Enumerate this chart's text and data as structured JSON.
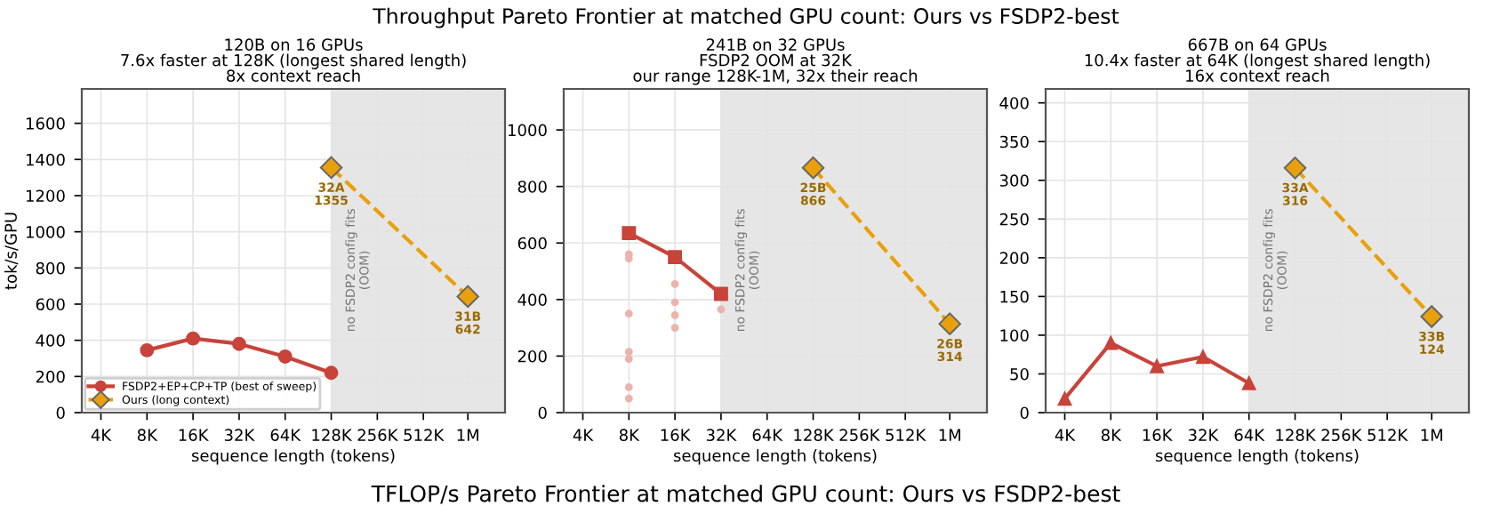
{
  "chart_data": [
    {
      "type": "line",
      "title": "120B on 16 GPUs\n7.6x faster at 128K (longest shared length)\n8x context reach",
      "xlabel": "sequence length (tokens)",
      "ylabel": "tok/s/GPU",
      "log": "x",
      "grid": true,
      "legend": "bottom left",
      "annotations": [
        "Throughput Pareto Frontier at matched GPU count: Ours vs FSDP2-best",
        "TFLOP/s Pareto Frontier at matched GPU count: Ours vs FSDP2-best"
      ],
      "xlim": [
        3000,
        1750000
      ],
      "xticks": [
        {
          "value": 4000,
          "label": "4K"
        },
        {
          "value": 8000,
          "label": "8K"
        },
        {
          "value": 16000,
          "label": "16K"
        },
        {
          "value": 32000,
          "label": "32K"
        },
        {
          "value": 64000,
          "label": "64K"
        },
        {
          "value": 128000,
          "label": "128K"
        },
        {
          "value": 256000,
          "label": "256K"
        },
        {
          "value": 512000,
          "label": "512K"
        },
        {
          "value": 1000000,
          "label": "1M"
        }
      ],
      "ylim": [
        0,
        1790
      ],
      "yticks": [
        0,
        200,
        400,
        600,
        800,
        1000,
        1200,
        1400,
        1600
      ],
      "bands": [
        {
          "axis": "x",
          "from": 128000,
          "to": 1750000,
          "label": "no FSDP2 config fits\n(OOM)",
          "color": "#e6e6e6"
        }
      ],
      "series": [
        {
          "name": "FSDP2+EP+CP+TP (best of sweep)",
          "color": "#c8433a",
          "marker": "circle",
          "line_style": "solid",
          "x": [
            8000,
            16000,
            32000,
            64000,
            128000
          ],
          "values": [
            345,
            410,
            380,
            310,
            220
          ]
        },
        {
          "name": "Ours (long context)",
          "color": "#e8a00c",
          "marker": "diamond",
          "line_style": "dashed",
          "x": [
            128000,
            1000000
          ],
          "values": [
            1355,
            642
          ],
          "value_labels": [
            "32A\n1355",
            "31B\n642"
          ]
        }
      ]
    },
    {
      "type": "line",
      "title": "241B on 32 GPUs\nFSDP2 OOM at 32K\nour range 128K-1M, 32x their reach",
      "xlabel": "sequence length (tokens)",
      "log": "x",
      "grid": true,
      "xlim": [
        3000,
        1750000
      ],
      "xticks": [
        {
          "value": 4000,
          "label": "4K"
        },
        {
          "value": 8000,
          "label": "8K"
        },
        {
          "value": 16000,
          "label": "16K"
        },
        {
          "value": 32000,
          "label": "32K"
        },
        {
          "value": 64000,
          "label": "64K"
        },
        {
          "value": 128000,
          "label": "128K"
        },
        {
          "value": 256000,
          "label": "256K"
        },
        {
          "value": 512000,
          "label": "512K"
        },
        {
          "value": 1000000,
          "label": "1M"
        }
      ],
      "ylim": [
        0,
        1145
      ],
      "yticks": [
        0,
        200,
        400,
        600,
        800,
        1000
      ],
      "bands": [
        {
          "axis": "x",
          "from": 32000,
          "to": 1750000,
          "label": "no FSDP2 config fits\n(OOM)",
          "color": "#e6e6e6"
        }
      ],
      "series": [
        {
          "type": "scatter",
          "color": "#ecb3ad",
          "marker": "circle",
          "x": [
            8000,
            8000,
            8000,
            8000,
            8000,
            8000,
            8000,
            16000,
            16000,
            16000,
            16000,
            32000
          ],
          "values": [
            560,
            545,
            350,
            215,
            190,
            90,
            50,
            455,
            390,
            345,
            300,
            365
          ]
        },
        {
          "color": "#c8433a",
          "marker": "square",
          "line_style": "solid",
          "x": [
            8000,
            16000,
            32000
          ],
          "values": [
            635,
            550,
            420
          ]
        },
        {
          "color": "#e8a00c",
          "marker": "diamond",
          "line_style": "dashed",
          "x": [
            128000,
            1000000
          ],
          "values": [
            866,
            314
          ],
          "value_labels": [
            "25B\n866",
            "26B\n314"
          ]
        }
      ]
    },
    {
      "type": "line",
      "title": "667B on 64 GPUs\n10.4x faster at 64K (longest shared length)\n16x context reach",
      "xlabel": "sequence length (tokens)",
      "log": "x",
      "grid": true,
      "xlim": [
        3000,
        1750000
      ],
      "xticks": [
        {
          "value": 4000,
          "label": "4K"
        },
        {
          "value": 8000,
          "label": "8K"
        },
        {
          "value": 16000,
          "label": "16K"
        },
        {
          "value": 32000,
          "label": "32K"
        },
        {
          "value": 64000,
          "label": "64K"
        },
        {
          "value": 128000,
          "label": "128K"
        },
        {
          "value": 256000,
          "label": "256K"
        },
        {
          "value": 512000,
          "label": "512K"
        },
        {
          "value": 1000000,
          "label": "1M"
        }
      ],
      "ylim": [
        0,
        418
      ],
      "yticks": [
        0,
        50,
        100,
        150,
        200,
        250,
        300,
        350,
        400
      ],
      "bands": [
        {
          "axis": "x",
          "from": 64000,
          "to": 1750000,
          "label": "no FSDP2 config fits\n(OOM)",
          "color": "#e6e6e6"
        }
      ],
      "series": [
        {
          "color": "#c8433a",
          "marker": "triangle",
          "line_style": "solid",
          "x": [
            4000,
            8000,
            16000,
            32000,
            64000
          ],
          "values": [
            18,
            90,
            60,
            72,
            38
          ]
        },
        {
          "color": "#e8a00c",
          "marker": "diamond",
          "line_style": "dashed",
          "x": [
            128000,
            1000000
          ],
          "values": [
            316,
            124
          ],
          "value_labels": [
            "33A\n316",
            "33B\n124"
          ]
        }
      ]
    }
  ]
}
